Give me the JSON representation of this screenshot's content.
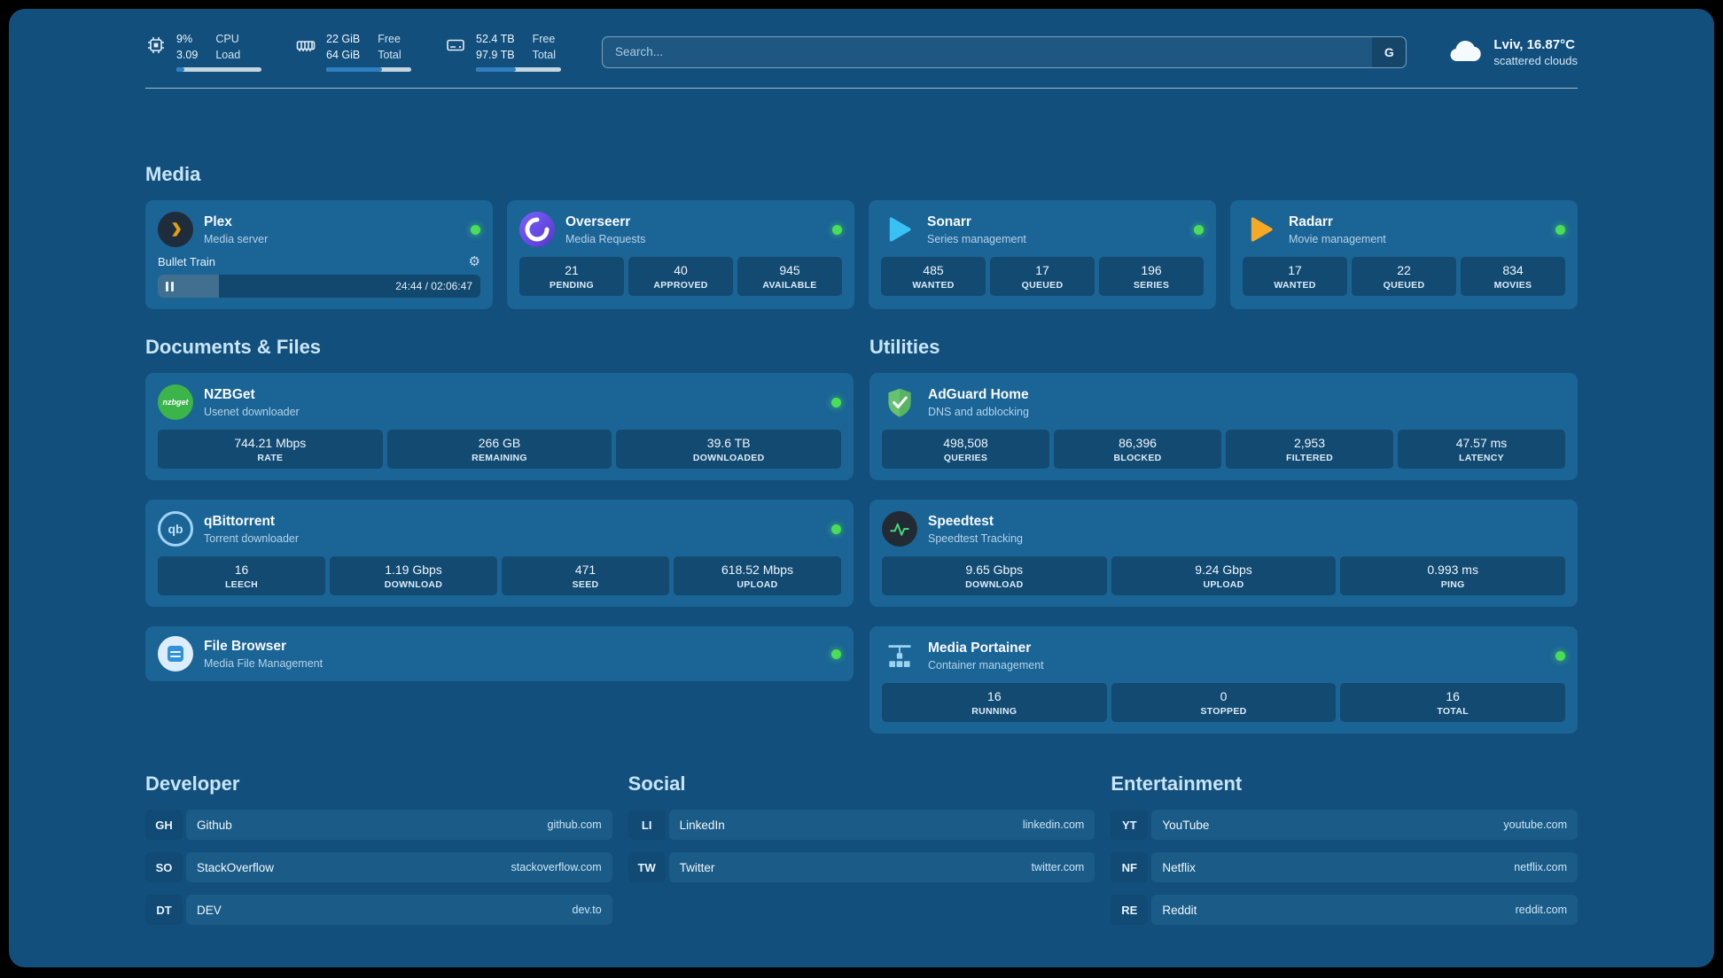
{
  "system": {
    "cpu": {
      "line1": "9%",
      "line2": "3.09",
      "label1": "CPU",
      "label2": "Load",
      "bar_percent": 9
    },
    "memory": {
      "line1": "22 GiB",
      "line2": "64 GiB",
      "label1": "Free",
      "label2": "Total",
      "bar_percent": 66
    },
    "storage": {
      "line1": "52.4 TB",
      "line2": "97.9 TB",
      "label1": "Free",
      "label2": "Total",
      "bar_percent": 47
    }
  },
  "search": {
    "placeholder": "Search...",
    "engine_button": "G"
  },
  "weather": {
    "location": "Lviv, 16.87°C",
    "condition": "scattered clouds"
  },
  "colors": {
    "status_online": "#4ade56",
    "accent_fill": "#2e7fc2",
    "background": "#124f7c",
    "card": "#1b6496"
  },
  "glyphs": {
    "gear": "⚙",
    "nzbget_badge": "nzbget",
    "qbittorrent_badge": "qb"
  },
  "sections": {
    "media": {
      "title": "Media",
      "plex": {
        "name": "Plex",
        "subtitle": "Media server",
        "status": "online",
        "now_playing": {
          "title": "Bullet Train",
          "time": "24:44 / 02:06:47",
          "progress_percent": 19
        }
      },
      "overseerr": {
        "name": "Overseerr",
        "subtitle": "Media Requests",
        "status": "online",
        "stats": [
          {
            "value": "21",
            "label": "PENDING"
          },
          {
            "value": "40",
            "label": "APPROVED"
          },
          {
            "value": "945",
            "label": "AVAILABLE"
          }
        ]
      },
      "sonarr": {
        "name": "Sonarr",
        "subtitle": "Series management",
        "status": "online",
        "stats": [
          {
            "value": "485",
            "label": "WANTED"
          },
          {
            "value": "17",
            "label": "QUEUED"
          },
          {
            "value": "196",
            "label": "SERIES"
          }
        ]
      },
      "radarr": {
        "name": "Radarr",
        "subtitle": "Movie management",
        "status": "online",
        "stats": [
          {
            "value": "17",
            "label": "WANTED"
          },
          {
            "value": "22",
            "label": "QUEUED"
          },
          {
            "value": "834",
            "label": "MOVIES"
          }
        ]
      }
    },
    "documents": {
      "title": "Documents & Files",
      "nzbget": {
        "name": "NZBGet",
        "subtitle": "Usenet downloader",
        "status": "online",
        "stats": [
          {
            "value": "744.21 Mbps",
            "label": "RATE"
          },
          {
            "value": "266 GB",
            "label": "REMAINING"
          },
          {
            "value": "39.6 TB",
            "label": "DOWNLOADED"
          }
        ]
      },
      "qbittorrent": {
        "name": "qBittorrent",
        "subtitle": "Torrent downloader",
        "status": "online",
        "stats": [
          {
            "value": "16",
            "label": "LEECH"
          },
          {
            "value": "1.19 Gbps",
            "label": "DOWNLOAD"
          },
          {
            "value": "471",
            "label": "SEED"
          },
          {
            "value": "618.52 Mbps",
            "label": "UPLOAD"
          }
        ]
      },
      "filebrowser": {
        "name": "File Browser",
        "subtitle": "Media File Management",
        "status": "online"
      }
    },
    "utilities": {
      "title": "Utilities",
      "adguard": {
        "name": "AdGuard Home",
        "subtitle": "DNS and adblocking",
        "stats": [
          {
            "value": "498,508",
            "label": "QUERIES"
          },
          {
            "value": "86,396",
            "label": "BLOCKED"
          },
          {
            "value": "2,953",
            "label": "FILTERED"
          },
          {
            "value": "47.57 ms",
            "label": "LATENCY"
          }
        ]
      },
      "speedtest": {
        "name": "Speedtest",
        "subtitle": "Speedtest Tracking",
        "stats": [
          {
            "value": "9.65 Gbps",
            "label": "DOWNLOAD"
          },
          {
            "value": "9.24 Gbps",
            "label": "UPLOAD"
          },
          {
            "value": "0.993 ms",
            "label": "PING"
          }
        ]
      },
      "portainer": {
        "name": "Media Portainer",
        "subtitle": "Container management",
        "status": "online",
        "stats": [
          {
            "value": "16",
            "label": "RUNNING"
          },
          {
            "value": "0",
            "label": "STOPPED"
          },
          {
            "value": "16",
            "label": "TOTAL"
          }
        ]
      }
    }
  },
  "bookmarks": {
    "developer": {
      "title": "Developer",
      "items": [
        {
          "abbr": "GH",
          "name": "Github",
          "url": "github.com"
        },
        {
          "abbr": "SO",
          "name": "StackOverflow",
          "url": "stackoverflow.com"
        },
        {
          "abbr": "DT",
          "name": "DEV",
          "url": "dev.to"
        }
      ]
    },
    "social": {
      "title": "Social",
      "items": [
        {
          "abbr": "LI",
          "name": "LinkedIn",
          "url": "linkedin.com"
        },
        {
          "abbr": "TW",
          "name": "Twitter",
          "url": "twitter.com"
        }
      ]
    },
    "entertainment": {
      "title": "Entertainment",
      "items": [
        {
          "abbr": "YT",
          "name": "YouTube",
          "url": "youtube.com"
        },
        {
          "abbr": "NF",
          "name": "Netflix",
          "url": "netflix.com"
        },
        {
          "abbr": "RE",
          "name": "Reddit",
          "url": "reddit.com"
        }
      ]
    }
  }
}
